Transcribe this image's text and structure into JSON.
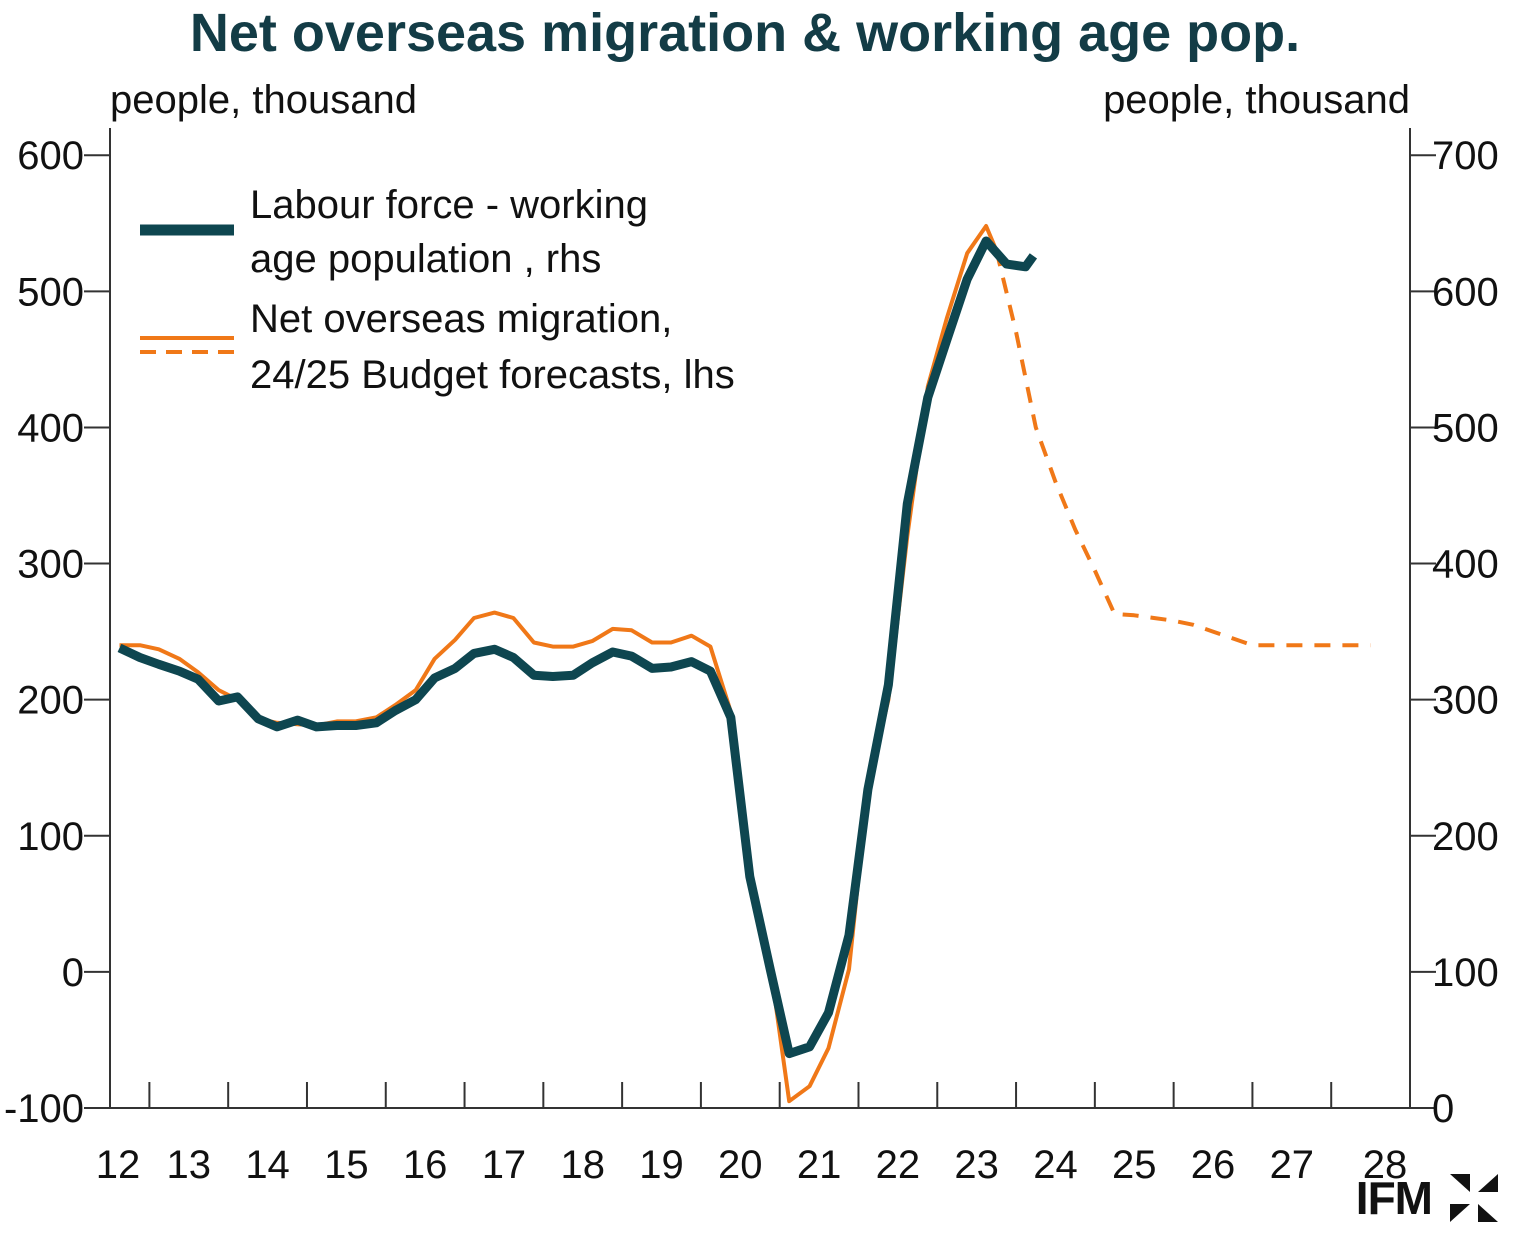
{
  "chart_data": {
    "type": "line",
    "title": "Net overseas migration & working age pop.",
    "ylabel_left": "people, thousand",
    "ylabel_right": "people, thousand",
    "ylim_left": [
      -100,
      620
    ],
    "ylim_right": [
      0,
      720
    ],
    "yticks_left": [
      "600",
      "500",
      "400",
      "300",
      "200",
      "100",
      "0",
      "-100"
    ],
    "yticks_right": [
      "700",
      "600",
      "500",
      "400",
      "300",
      "200",
      "100",
      "0"
    ],
    "xlim": [
      2012.5,
      2029.0
    ],
    "xticks": [
      "12",
      "13",
      "14",
      "15",
      "16",
      "17",
      "18",
      "19",
      "20",
      "21",
      "22",
      "23",
      "24",
      "25",
      "26",
      "27",
      "28"
    ],
    "colors": {
      "labour": "#0e4650",
      "migration": "#f07818",
      "axis": "#333333"
    },
    "legend": {
      "labour": [
        "Labour force - working",
        "age population , rhs"
      ],
      "migration": [
        "Net overseas migration,",
        "24/25 Budget forecasts, lhs"
      ]
    },
    "series": [
      {
        "name": "Labour force - working age population",
        "axis": "right",
        "x": [
          2012.62,
          2012.88,
          2013.12,
          2013.38,
          2013.62,
          2013.88,
          2014.12,
          2014.38,
          2014.62,
          2014.88,
          2015.12,
          2015.38,
          2015.62,
          2015.88,
          2016.12,
          2016.38,
          2016.62,
          2016.88,
          2017.12,
          2017.38,
          2017.62,
          2017.88,
          2018.12,
          2018.38,
          2018.62,
          2018.88,
          2019.12,
          2019.38,
          2019.62,
          2019.88,
          2020.12,
          2020.38,
          2020.62,
          2020.88,
          2021.12,
          2021.38,
          2021.62,
          2021.88,
          2022.12,
          2022.38,
          2022.62,
          2022.88,
          2023.12,
          2023.38,
          2023.62,
          2023.88,
          2024.12,
          2024.22
        ],
        "values": [
          338,
          331,
          326,
          321,
          315,
          299,
          302,
          286,
          280,
          285,
          280,
          281,
          281,
          283,
          292,
          300,
          316,
          323,
          334,
          337,
          331,
          318,
          317,
          318,
          327,
          335,
          332,
          323,
          324,
          328,
          321,
          287,
          170,
          102,
          40,
          45,
          70,
          127,
          234,
          311,
          444,
          522,
          564,
          609,
          637,
          620,
          618,
          626
        ]
      },
      {
        "name": "Net overseas migration (actual)",
        "axis": "left",
        "x": [
          2012.62,
          2012.88,
          2013.12,
          2013.38,
          2013.62,
          2013.88,
          2014.12,
          2014.38,
          2014.62,
          2014.88,
          2015.12,
          2015.38,
          2015.62,
          2015.88,
          2016.12,
          2016.38,
          2016.62,
          2016.88,
          2017.12,
          2017.38,
          2017.62,
          2017.88,
          2018.12,
          2018.38,
          2018.62,
          2018.88,
          2019.12,
          2019.38,
          2019.62,
          2019.88,
          2020.12,
          2020.38,
          2020.62,
          2020.88,
          2021.12,
          2021.38,
          2021.62,
          2021.88,
          2022.12,
          2022.38,
          2022.62,
          2022.88,
          2023.12,
          2023.38,
          2023.62,
          2023.75
        ],
        "values": [
          240,
          240,
          237,
          230,
          220,
          207,
          200,
          186,
          183,
          182,
          181,
          184,
          184,
          187,
          196,
          207,
          230,
          244,
          260,
          264,
          260,
          242,
          239,
          239,
          243,
          252,
          251,
          242,
          242,
          247,
          239,
          191,
          70,
          5,
          -95,
          -84,
          -56,
          2,
          135,
          200,
          320,
          430,
          480,
          528,
          548,
          530
        ]
      },
      {
        "name": "Net overseas migration, 24/25 Budget forecasts",
        "axis": "left",
        "dashed": true,
        "x": [
          2023.75,
          2024.0,
          2024.25,
          2024.5,
          2024.75,
          2025.0,
          2025.25,
          2025.5,
          2025.75,
          2026.0,
          2026.25,
          2026.5,
          2026.75,
          2027.0,
          2027.25,
          2027.5,
          2027.75,
          2028.0,
          2028.25,
          2028.5
        ],
        "values": [
          530,
          470,
          400,
          360,
          325,
          295,
          263,
          262,
          260,
          258,
          255,
          250,
          245,
          240,
          240,
          240,
          240,
          240,
          240,
          240
        ]
      }
    ]
  },
  "brand": {
    "name": "IFM"
  }
}
